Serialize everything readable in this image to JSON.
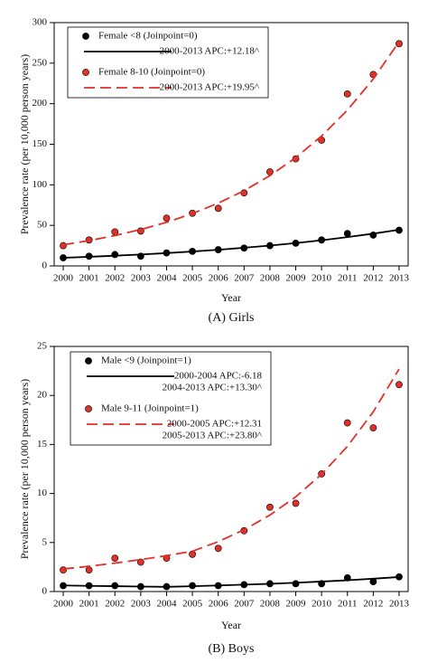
{
  "chart_data": [
    {
      "type": "scatter-fit",
      "caption": "(A) Girls",
      "xlabel": "Year",
      "ylabel": "Prevalence rate (per 10,000 person years)",
      "x": [
        2000,
        2001,
        2002,
        2003,
        2004,
        2005,
        2006,
        2007,
        2008,
        2009,
        2010,
        2011,
        2012,
        2013
      ],
      "xlim": [
        1999.65,
        2013.35
      ],
      "xticks": [
        2000,
        2001,
        2002,
        2003,
        2004,
        2005,
        2006,
        2007,
        2008,
        2009,
        2010,
        2011,
        2012,
        2013
      ],
      "ylim": [
        0,
        300
      ],
      "yticks": [
        0,
        50,
        100,
        150,
        200,
        250,
        300
      ],
      "series": [
        {
          "name": "Female <8 (Joinpoint=0)",
          "style": "points",
          "color": "#000000",
          "values": [
            10,
            12,
            14,
            12,
            16,
            18,
            20,
            22,
            25,
            28,
            32,
            40,
            38,
            44
          ]
        },
        {
          "name": [
            "2000-2013 APC:+12.18^"
          ],
          "style": "solid",
          "color": "#000000",
          "values": [
            10,
            11.2,
            12.6,
            14.1,
            15.8,
            17.8,
            19.9,
            22.4,
            25.1,
            28.2,
            31.6,
            35.5,
            39.8,
            44.6
          ]
        },
        {
          "name": "Female 8-10 (Joinpoint=0)",
          "style": "points",
          "color": "#e0302a",
          "values": [
            25,
            32,
            42,
            43,
            59,
            65,
            71,
            90,
            116,
            132,
            155,
            212,
            236,
            274
          ]
        },
        {
          "name": [
            "2000-2013 APC:+19.95^"
          ],
          "style": "dashed",
          "color": "#e0302a",
          "values": [
            26,
            31.2,
            37.4,
            44.9,
            53.8,
            64.5,
            77.4,
            92.8,
            111.3,
            133.5,
            160.2,
            192.1,
            230.5,
            276.4
          ]
        }
      ]
    },
    {
      "type": "scatter-fit",
      "caption": "(B) Boys",
      "xlabel": "Year",
      "ylabel": "Prevalence rate (per 10,000 person years)",
      "x": [
        2000,
        2001,
        2002,
        2003,
        2004,
        2005,
        2006,
        2007,
        2008,
        2009,
        2010,
        2011,
        2012,
        2013
      ],
      "xlim": [
        1999.65,
        2013.35
      ],
      "xticks": [
        2000,
        2001,
        2002,
        2003,
        2004,
        2005,
        2006,
        2007,
        2008,
        2009,
        2010,
        2011,
        2012,
        2013
      ],
      "ylim": [
        0,
        25
      ],
      "yticks": [
        0,
        5,
        10,
        15,
        20,
        25
      ],
      "series": [
        {
          "name": "Male <9 (Joinpoint=1)",
          "style": "points",
          "color": "#000000",
          "values": [
            0.6,
            0.6,
            0.6,
            0.5,
            0.5,
            0.6,
            0.6,
            0.7,
            0.8,
            0.8,
            0.8,
            1.4,
            1.0,
            1.5
          ]
        },
        {
          "name": [
            "2000-2004 APC:-6.18",
            "2004-2013 APC:+13.30^"
          ],
          "style": "solid",
          "color": "#000000",
          "values": [
            0.62,
            0.58,
            0.55,
            0.51,
            0.48,
            0.54,
            0.62,
            0.7,
            0.79,
            0.9,
            1.02,
            1.15,
            1.31,
            1.48
          ]
        },
        {
          "name": "Male 9-11 (Joinpoint=1)",
          "style": "points",
          "color": "#e0302a",
          "values": [
            2.2,
            2.2,
            3.4,
            3.0,
            3.4,
            3.8,
            4.4,
            6.2,
            8.6,
            9.0,
            12.0,
            17.2,
            16.7,
            21.1
          ]
        },
        {
          "name": [
            "2000-2005 APC:+12.31",
            "2005-2013 APC:+23.80^"
          ],
          "style": "dashed",
          "color": "#e0302a",
          "values": [
            2.3,
            2.58,
            2.9,
            3.26,
            3.66,
            4.11,
            5.09,
            6.3,
            7.8,
            9.66,
            11.96,
            14.81,
            18.33,
            22.69
          ]
        }
      ]
    }
  ]
}
